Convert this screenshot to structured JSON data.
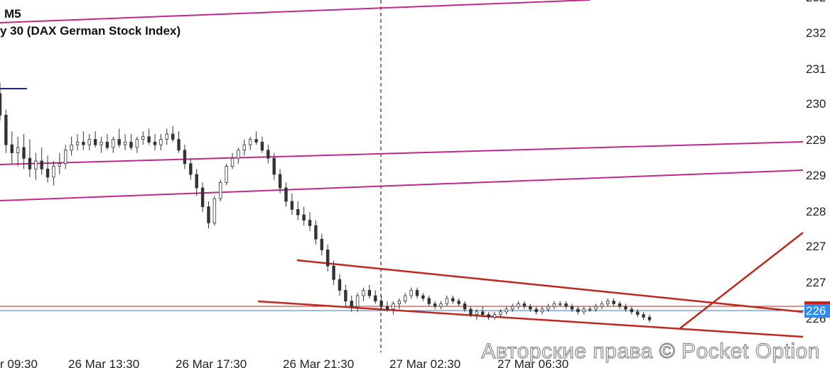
{
  "header": {
    "timeframe": "M5",
    "symbol": "y 30 (DAX German Stock Index)"
  },
  "watermark": "Авторские права © Pocket Option",
  "colors": {
    "background": "#ffffff",
    "candle": "#333333",
    "resistance_lines": "#c0288a",
    "trend_lines": "#c0281e",
    "current_price_line": "#3a78c8",
    "reference_line": "#c0281e",
    "price_label_bg": "#2a8cf0",
    "price_label_accent": "#d0201a",
    "crosshair": "#000000"
  },
  "chart_data": {
    "type": "candlestick",
    "title": "y 30 (DAX German Stock Index)",
    "timeframe": "M5",
    "x_tick_labels": [
      "r 09:30",
      "26 Mar 13:30",
      "26 Mar 17:30",
      "26 Mar 21:30",
      "27 Mar 02:30",
      "27 Mar 06:30"
    ],
    "y_tick_labels": [
      "232",
      "232",
      "231",
      "230",
      "229",
      "229",
      "228",
      "227",
      "227",
      "226"
    ],
    "current_price_label": "226",
    "legend": "none",
    "grid": false,
    "candles": [
      [
        2304.0,
        2306.0,
        2299.0,
        2300.0
      ],
      [
        2300.0,
        2301.0,
        2293.0,
        2294.5
      ],
      [
        2294.5,
        2297.0,
        2291.0,
        2293.0
      ],
      [
        2293.0,
        2296.0,
        2290.5,
        2294.0
      ],
      [
        2294.0,
        2296.5,
        2290.0,
        2292.0
      ],
      [
        2292.0,
        2295.5,
        2288.5,
        2290.0
      ],
      [
        2290.0,
        2293.0,
        2288.0,
        2291.5
      ],
      [
        2291.5,
        2294.0,
        2289.0,
        2290.0
      ],
      [
        2290.0,
        2292.5,
        2287.5,
        2288.5
      ],
      [
        2288.5,
        2291.5,
        2287.0,
        2290.5
      ],
      [
        2290.5,
        2293.0,
        2289.0,
        2291.0
      ],
      [
        2291.0,
        2294.5,
        2290.0,
        2293.5
      ],
      [
        2293.5,
        2296.0,
        2292.5,
        2294.5
      ],
      [
        2294.5,
        2296.5,
        2293.5,
        2295.0
      ],
      [
        2295.0,
        2297.0,
        2293.5,
        2294.5
      ],
      [
        2294.5,
        2296.5,
        2293.5,
        2295.5
      ],
      [
        2295.5,
        2297.0,
        2294.0,
        2294.5
      ],
      [
        2294.5,
        2296.0,
        2293.0,
        2295.0
      ],
      [
        2295.0,
        2296.5,
        2293.5,
        2294.0
      ],
      [
        2294.0,
        2296.0,
        2293.0,
        2295.5
      ],
      [
        2295.5,
        2297.5,
        2294.0,
        2294.5
      ],
      [
        2294.5,
        2296.5,
        2293.5,
        2295.0
      ],
      [
        2295.0,
        2296.5,
        2293.5,
        2294.0
      ],
      [
        2294.0,
        2296.0,
        2293.0,
        2295.5
      ],
      [
        2295.5,
        2297.0,
        2294.5,
        2296.0
      ],
      [
        2296.0,
        2297.5,
        2294.5,
        2295.0
      ],
      [
        2295.0,
        2296.5,
        2293.5,
        2294.5
      ],
      [
        2294.5,
        2296.5,
        2293.5,
        2295.5
      ],
      [
        2295.5,
        2297.5,
        2294.5,
        2296.5
      ],
      [
        2296.5,
        2298.0,
        2295.0,
        2295.5
      ],
      [
        2295.5,
        2297.0,
        2293.0,
        2293.5
      ],
      [
        2293.5,
        2294.5,
        2290.0,
        2291.0
      ],
      [
        2291.0,
        2292.0,
        2288.0,
        2289.0
      ],
      [
        2289.0,
        2290.0,
        2285.0,
        2286.5
      ],
      [
        2286.5,
        2287.5,
        2282.0,
        2283.0
      ],
      [
        2283.0,
        2284.0,
        2279.0,
        2280.0
      ],
      [
        2280.0,
        2285.0,
        2279.5,
        2284.5
      ],
      [
        2284.5,
        2288.0,
        2284.0,
        2287.5
      ],
      [
        2287.5,
        2291.0,
        2287.0,
        2290.5
      ],
      [
        2290.5,
        2293.0,
        2290.0,
        2292.0
      ],
      [
        2292.0,
        2294.0,
        2291.0,
        2293.5
      ],
      [
        2293.5,
        2295.5,
        2292.5,
        2294.5
      ],
      [
        2294.5,
        2296.0,
        2293.5,
        2295.5
      ],
      [
        2295.5,
        2297.0,
        2294.5,
        2295.0
      ],
      [
        2295.0,
        2296.0,
        2293.0,
        2293.5
      ],
      [
        2293.5,
        2294.5,
        2291.0,
        2292.0
      ],
      [
        2292.0,
        2293.0,
        2288.0,
        2289.0
      ],
      [
        2289.0,
        2290.0,
        2285.5,
        2286.5
      ],
      [
        2286.5,
        2287.5,
        2283.0,
        2284.0
      ],
      [
        2284.0,
        2285.5,
        2281.5,
        2282.5
      ],
      [
        2282.5,
        2284.0,
        2280.5,
        2281.5
      ],
      [
        2281.5,
        2283.0,
        2279.5,
        2280.5
      ],
      [
        2280.5,
        2282.0,
        2278.5,
        2279.5
      ],
      [
        2279.5,
        2280.5,
        2276.0,
        2277.0
      ],
      [
        2277.0,
        2278.0,
        2274.0,
        2275.0
      ],
      [
        2275.0,
        2276.0,
        2271.0,
        2272.0
      ],
      [
        2272.0,
        2273.0,
        2268.5,
        2269.5
      ],
      [
        2269.5,
        2270.5,
        2266.5,
        2267.5
      ],
      [
        2267.5,
        2268.5,
        2264.5,
        2265.5
      ],
      [
        2265.5,
        2266.5,
        2263.5,
        2264.5
      ],
      [
        2264.5,
        2267.0,
        2263.5,
        2266.5
      ],
      [
        2266.5,
        2268.0,
        2265.5,
        2267.5
      ],
      [
        2267.5,
        2268.5,
        2266.0,
        2266.5
      ],
      [
        2266.5,
        2267.5,
        2265.0,
        2265.5
      ],
      [
        2265.5,
        2266.5,
        2264.0,
        2264.5
      ],
      [
        2264.5,
        2265.5,
        2263.5,
        2264.0
      ],
      [
        2264.0,
        2265.5,
        2263.0,
        2265.0
      ],
      [
        2265.0,
        2266.0,
        2264.0,
        2265.5
      ],
      [
        2265.5,
        2267.0,
        2265.0,
        2266.5
      ],
      [
        2266.5,
        2268.0,
        2266.0,
        2267.5
      ],
      [
        2267.5,
        2268.0,
        2266.0,
        2266.5
      ],
      [
        2266.5,
        2267.0,
        2265.5,
        2266.0
      ],
      [
        2266.0,
        2266.5,
        2264.5,
        2265.0
      ],
      [
        2265.0,
        2265.5,
        2264.0,
        2264.5
      ],
      [
        2264.5,
        2265.5,
        2264.0,
        2265.0
      ],
      [
        2265.0,
        2266.5,
        2264.5,
        2266.0
      ],
      [
        2266.0,
        2266.5,
        2265.0,
        2265.5
      ],
      [
        2265.5,
        2266.0,
        2264.5,
        2265.0
      ],
      [
        2265.0,
        2265.5,
        2263.5,
        2264.0
      ],
      [
        2264.0,
        2264.5,
        2262.5,
        2263.0
      ],
      [
        2263.0,
        2264.0,
        2262.0,
        2263.5
      ],
      [
        2263.5,
        2264.5,
        2262.5,
        2263.0
      ],
      [
        2263.0,
        2263.5,
        2262.0,
        2262.5
      ],
      [
        2262.5,
        2263.5,
        2262.0,
        2263.0
      ],
      [
        2263.0,
        2264.0,
        2262.5,
        2263.5
      ],
      [
        2263.5,
        2264.5,
        2263.0,
        2264.0
      ],
      [
        2264.0,
        2265.0,
        2263.5,
        2264.5
      ],
      [
        2264.5,
        2265.5,
        2264.0,
        2265.0
      ],
      [
        2265.0,
        2265.5,
        2264.0,
        2264.5
      ],
      [
        2264.5,
        2265.0,
        2263.5,
        2264.0
      ],
      [
        2264.0,
        2264.5,
        2263.0,
        2263.5
      ],
      [
        2263.5,
        2264.5,
        2263.0,
        2264.0
      ],
      [
        2264.0,
        2265.0,
        2263.5,
        2264.5
      ],
      [
        2264.5,
        2265.5,
        2264.0,
        2265.0
      ],
      [
        2265.0,
        2265.5,
        2264.5,
        2265.0
      ],
      [
        2265.0,
        2265.5,
        2264.0,
        2264.5
      ],
      [
        2264.5,
        2265.0,
        2263.5,
        2264.0
      ],
      [
        2264.0,
        2264.5,
        2263.0,
        2263.5
      ],
      [
        2263.5,
        2264.5,
        2263.0,
        2264.0
      ],
      [
        2264.0,
        2264.5,
        2263.5,
        2264.0
      ],
      [
        2264.0,
        2265.0,
        2263.5,
        2264.5
      ],
      [
        2264.5,
        2265.5,
        2264.0,
        2265.0
      ],
      [
        2265.0,
        2266.0,
        2264.5,
        2265.5
      ],
      [
        2265.5,
        2266.0,
        2264.5,
        2265.0
      ],
      [
        2265.0,
        2265.5,
        2264.0,
        2264.5
      ],
      [
        2264.5,
        2265.0,
        2263.5,
        2264.0
      ],
      [
        2264.0,
        2264.5,
        2263.0,
        2263.5
      ],
      [
        2263.5,
        2264.0,
        2262.5,
        2263.0
      ],
      [
        2263.0,
        2263.5,
        2262.0,
        2262.5
      ],
      [
        2262.5,
        2263.0,
        2261.5,
        2262.0
      ]
    ]
  }
}
